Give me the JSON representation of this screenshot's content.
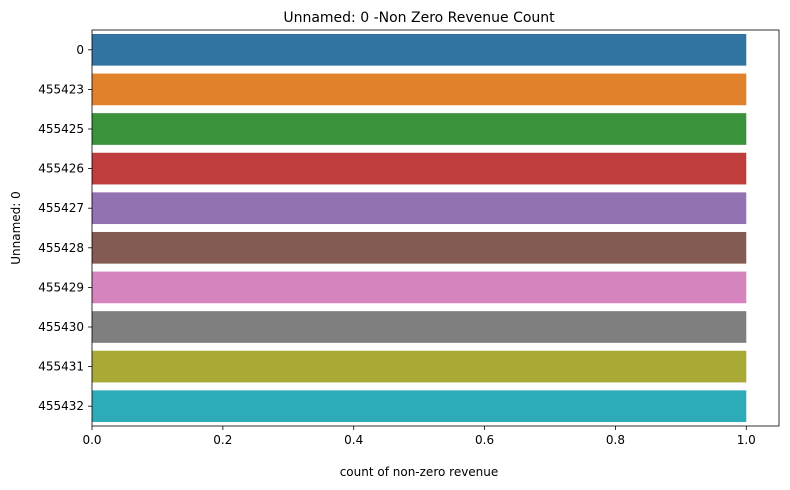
{
  "chart_data": {
    "type": "bar",
    "orientation": "horizontal",
    "title": "Unnamed: 0 -Non Zero Revenue Count",
    "xlabel": "count of non-zero revenue",
    "ylabel": "Unnamed: 0",
    "categories": [
      "0",
      "455423",
      "455425",
      "455426",
      "455427",
      "455428",
      "455429",
      "455430",
      "455431",
      "455432"
    ],
    "values": [
      1,
      1,
      1,
      1,
      1,
      1,
      1,
      1,
      1,
      1
    ],
    "colors": [
      "#3274a1",
      "#e1812c",
      "#3a923a",
      "#c03d3e",
      "#9372b2",
      "#845b53",
      "#d684bd",
      "#7f7f7f",
      "#a9aa35",
      "#2eabb8"
    ],
    "xlim": [
      0,
      1.05
    ],
    "xticks": [
      0.0,
      0.2,
      0.4,
      0.6,
      0.8,
      1.0
    ],
    "xtick_labels": [
      "0.0",
      "0.2",
      "0.4",
      "0.6",
      "0.8",
      "1.0"
    ],
    "grid": false,
    "legend": "none"
  }
}
